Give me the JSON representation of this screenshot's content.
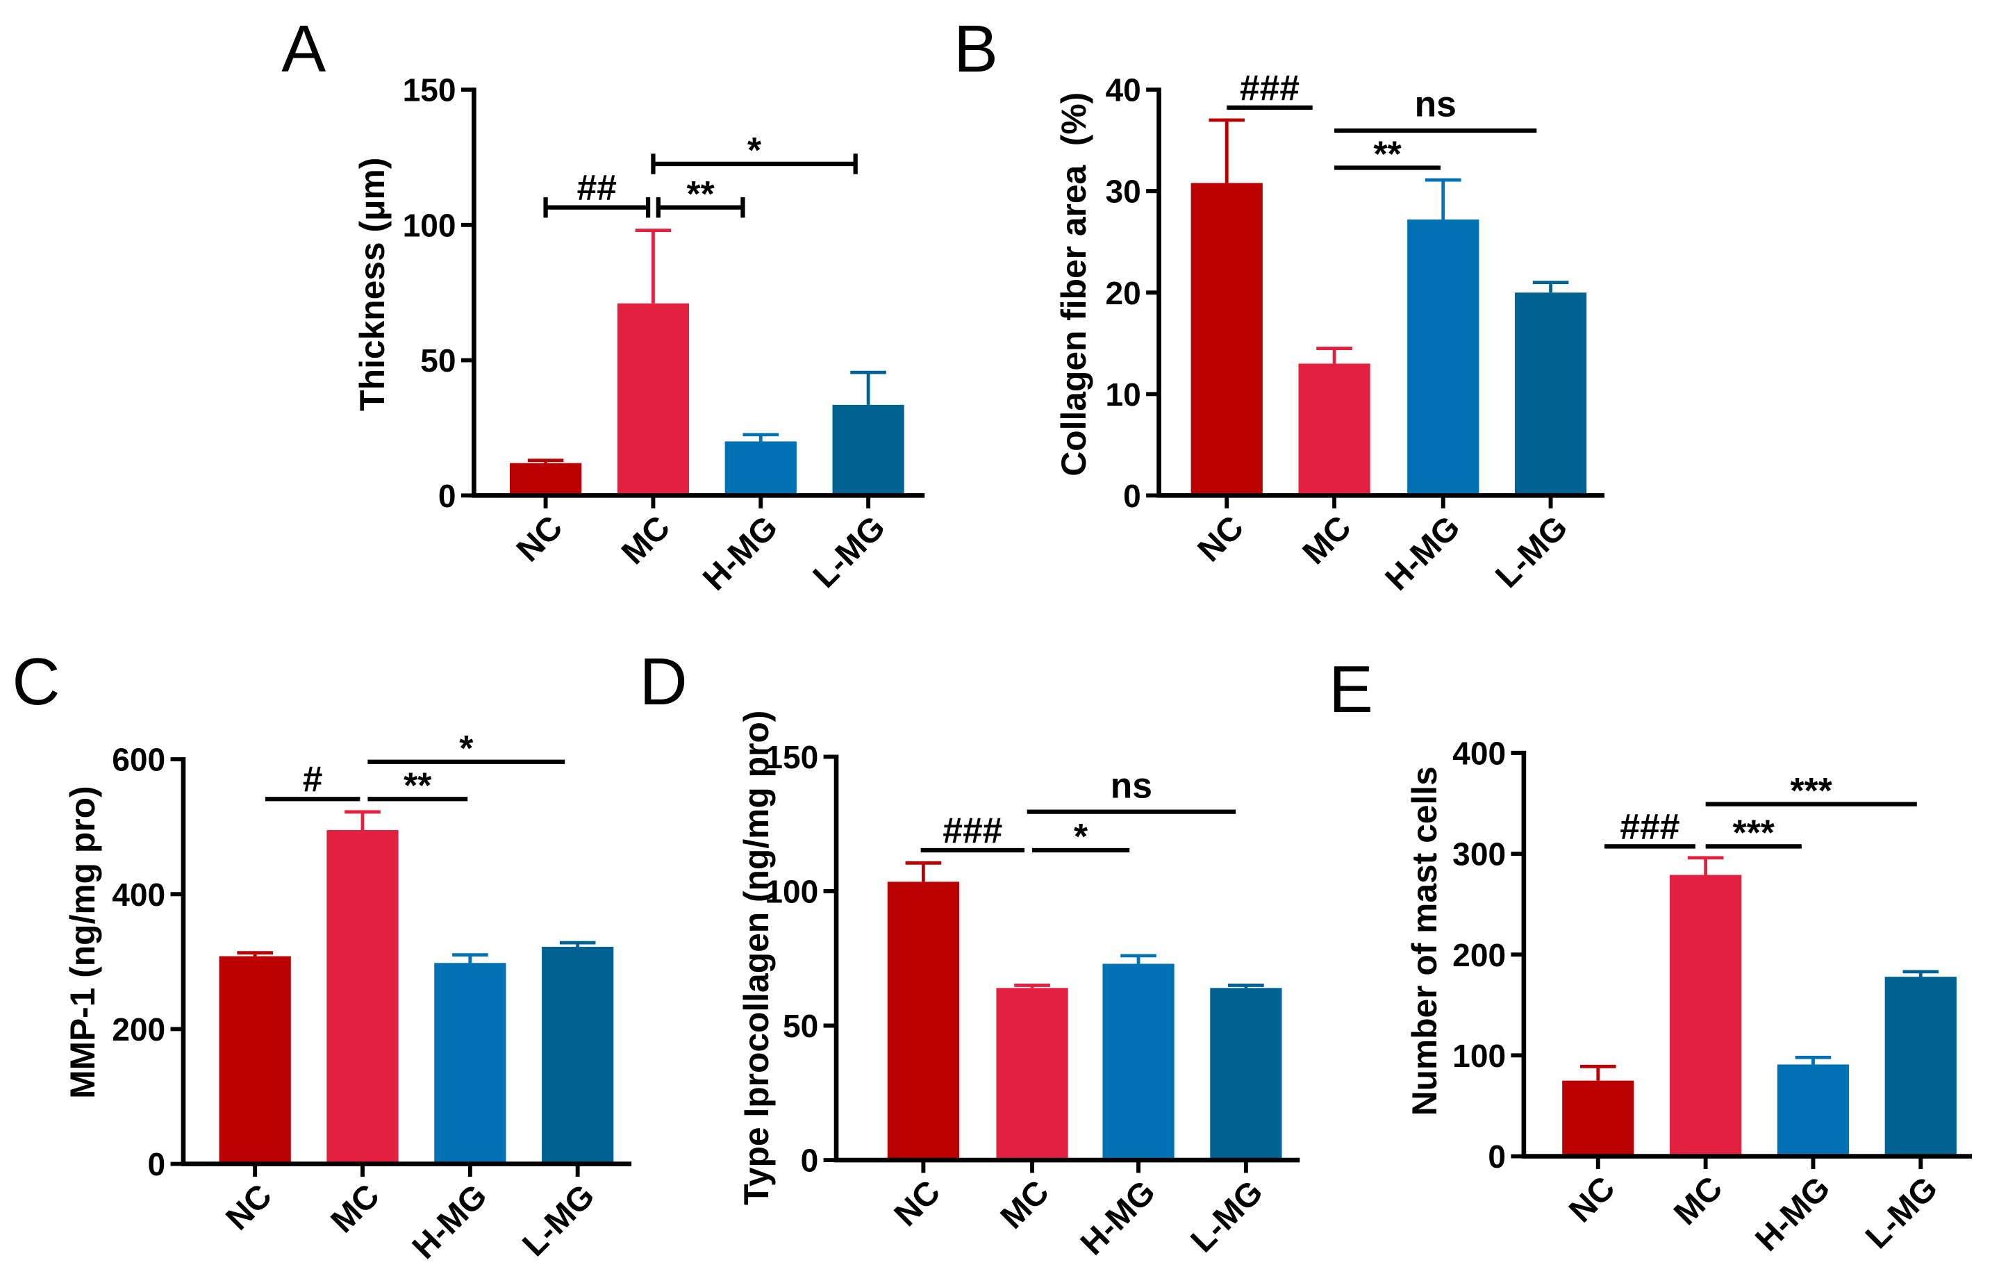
{
  "colors": {
    "NC": "#BA0000",
    "MC": "#E2203F",
    "H-MG": "#0072B3",
    "L-MG": "#006292",
    "axis": "#000000"
  },
  "chart_data": [
    {
      "panel": "A",
      "type": "bar",
      "categories": [
        "NC",
        "MC",
        "H-MG",
        "L-MG"
      ],
      "values": [
        12,
        71,
        20,
        33.5
      ],
      "error_upper": [
        13,
        98,
        22.5,
        45.5
      ],
      "xlabel": "",
      "ylabel": "Thickness (μm)",
      "ylim": [
        0,
        150
      ],
      "yticks": [
        0,
        50,
        100,
        150
      ],
      "bracket_style": "capped",
      "significance": [
        {
          "from": "NC",
          "to": "MC",
          "label": "##"
        },
        {
          "from": "MC",
          "to": "H-MG",
          "label": "**"
        },
        {
          "from": "MC",
          "to": "L-MG",
          "label": "*"
        }
      ]
    },
    {
      "panel": "B",
      "type": "bar",
      "categories": [
        "NC",
        "MC",
        "H-MG",
        "L-MG"
      ],
      "values": [
        30.8,
        13,
        27.2,
        20
      ],
      "error_upper": [
        37,
        14.5,
        31.1,
        21
      ],
      "xlabel": "",
      "ylabel": "Collagen fiber area  (%)",
      "ylim": [
        0,
        40
      ],
      "yticks": [
        0,
        10,
        20,
        30,
        40
      ],
      "bracket_style": "plain",
      "significance": [
        {
          "from": "NC",
          "to": "MC",
          "label": "###"
        },
        {
          "from": "MC",
          "to": "L-MG",
          "label": "ns"
        },
        {
          "from": "MC",
          "to": "H-MG",
          "label": "**"
        }
      ]
    },
    {
      "panel": "C",
      "type": "bar",
      "categories": [
        "NC",
        "MC",
        "H-MG",
        "L-MG"
      ],
      "values": [
        308,
        495,
        298,
        322
      ],
      "error_upper": [
        313,
        522,
        310,
        328
      ],
      "xlabel": "",
      "ylabel": "MMP-1 (ng/mg pro)",
      "ylim": [
        0,
        600
      ],
      "yticks": [
        0,
        200,
        400,
        600
      ],
      "bracket_style": "plain",
      "significance": [
        {
          "from": "NC",
          "to": "MC",
          "label": "#"
        },
        {
          "from": "MC",
          "to": "H-MG",
          "label": "**"
        },
        {
          "from": "MC",
          "to": "L-MG",
          "label": "*"
        }
      ]
    },
    {
      "panel": "D",
      "type": "bar",
      "categories": [
        "NC",
        "MC",
        "H-MG",
        "L-MG"
      ],
      "values": [
        103.5,
        64,
        73,
        64
      ],
      "error_upper": [
        110.5,
        65,
        76,
        65
      ],
      "xlabel": "",
      "ylabel": "Type Iprocollagen (ng/mg pro)",
      "ylim": [
        0,
        150
      ],
      "yticks": [
        0,
        50,
        100,
        150
      ],
      "bracket_style": "plain",
      "significance": [
        {
          "from": "NC",
          "to": "MC",
          "label": "###"
        },
        {
          "from": "MC",
          "to": "H-MG",
          "label": "*"
        },
        {
          "from": "MC",
          "to": "L-MG",
          "label": "ns"
        }
      ]
    },
    {
      "panel": "E",
      "type": "bar",
      "categories": [
        "NC",
        "MC",
        "H-MG",
        "L-MG"
      ],
      "values": [
        75,
        279,
        91,
        178
      ],
      "error_upper": [
        89,
        296,
        98,
        183
      ],
      "xlabel": "",
      "ylabel": "Number of mast cells",
      "ylim": [
        0,
        400
      ],
      "yticks": [
        0,
        100,
        200,
        300,
        400
      ],
      "bracket_style": "plain",
      "significance": [
        {
          "from": "NC",
          "to": "MC",
          "label": "###"
        },
        {
          "from": "MC",
          "to": "H-MG",
          "label": "***"
        },
        {
          "from": "MC",
          "to": "L-MG",
          "label": "***"
        }
      ]
    }
  ]
}
